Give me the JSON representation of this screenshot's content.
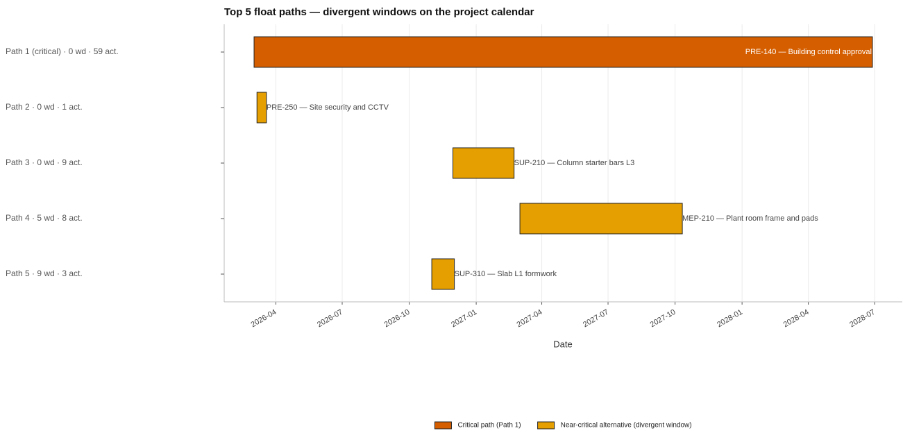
{
  "chart_data": {
    "type": "gantt",
    "title": "Top 5 float paths — divergent windows on the project calendar",
    "x_label": "Date",
    "categories": [
      "Path 1 (critical) · 0 wd · 59 act.",
      "Path 2 · 0 wd · 1 act.",
      "Path 3 · 0 wd · 9 act.",
      "Path 4 · 5 wd · 8 act.",
      "Path 5 · 9 wd · 3 act."
    ],
    "annotations": [
      "PRE-140 — Building control approval",
      "PRE-250 — Site security and CCTV",
      "SUP-210 — Column starter bars L3",
      "MEP-210 — Plant room frame and pads",
      "SUP-310 — Slab L1 formwork"
    ],
    "series": [
      {
        "name": "Critical path (Path 1)",
        "color": "#d55e00",
        "values": [
          [
            "2026-03-02",
            "2028-06-28"
          ],
          null,
          null,
          null,
          null
        ]
      },
      {
        "name": "Near-critical alternative (divergent window)",
        "color": "#e69f00",
        "values": [
          null,
          [
            "2026-03-06",
            "2026-03-19"
          ],
          [
            "2026-11-30",
            "2027-02-22"
          ],
          [
            "2027-03-02",
            "2027-10-11"
          ],
          [
            "2026-11-01",
            "2026-12-02"
          ]
        ]
      }
    ],
    "xlim": [
      "2026-01-20",
      "2028-08-08"
    ],
    "xticks": [
      "2026-04",
      "2026-07",
      "2026-10",
      "2027-01",
      "2027-04",
      "2027-07",
      "2027-10",
      "2028-01",
      "2028-04",
      "2028-07"
    ],
    "grid": true,
    "legend": "bottom"
  }
}
